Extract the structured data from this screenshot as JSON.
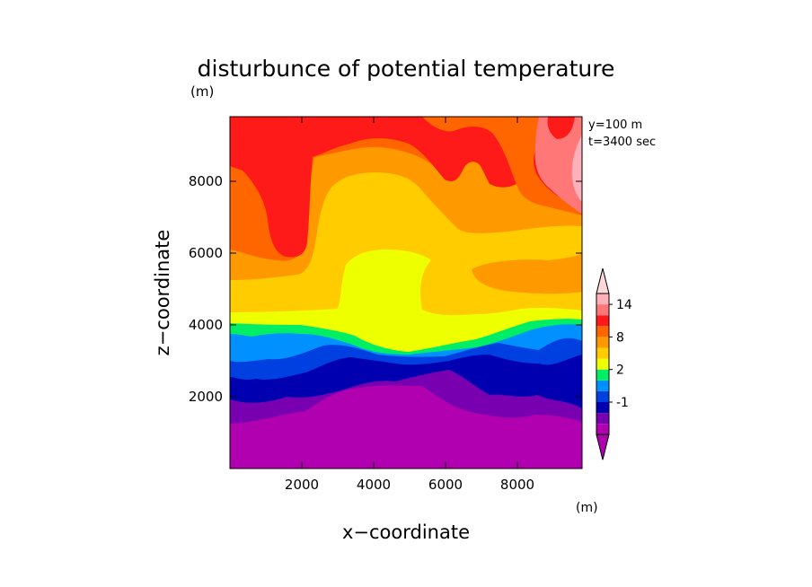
{
  "chart_data": {
    "type": "heatmap",
    "title": "disturbunce of potential temperature",
    "units_label": "(m)",
    "annotation_lines": [
      "y=100 m",
      "t=3400 sec"
    ],
    "xlabel": "x−coordinate",
    "ylabel": "z−coordinate",
    "xlim": [
      0,
      9800
    ],
    "ylim": [
      0,
      9800
    ],
    "x_ticks": [
      2000,
      4000,
      6000,
      8000
    ],
    "x_tick_labels": [
      "2000",
      "4000",
      "6000",
      "8000"
    ],
    "y_ticks": [
      2000,
      4000,
      6000,
      8000
    ],
    "y_tick_labels": [
      "2000",
      "4000",
      "6000",
      "8000"
    ],
    "grid": false,
    "legend_position": "right",
    "colorbar": {
      "units_label": "(m)",
      "colors": [
        "#b000b0",
        "#7800b0",
        "#0000b0",
        "#0040e0",
        "#0090ff",
        "#00ee66",
        "#eeff00",
        "#ffcc00",
        "#ff9900",
        "#ff6600",
        "#ff1a1a",
        "#ff7777",
        "#ffb0b8"
      ],
      "over_color": "#ffd8dc",
      "under_color": "#b000b0",
      "tick_labels": [
        "-1",
        "2",
        "8",
        "14"
      ]
    }
  }
}
